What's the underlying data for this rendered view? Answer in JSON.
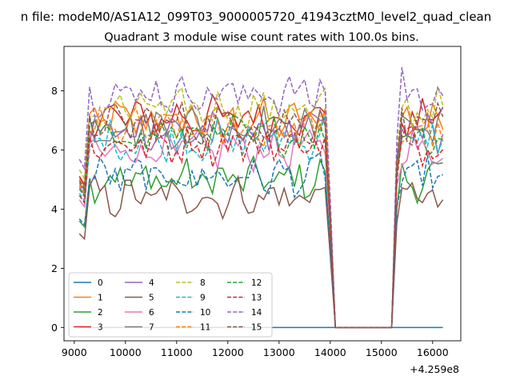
{
  "figure": {
    "suptitle": "n file: modeM0/AS1A12_099T03_9000005720_41943cztM0_level2_quad_clean",
    "title": "Quadrant 3 module wise count rates with 100.0s bins.",
    "x_offset_label": "+4.259e8"
  },
  "chart_data": {
    "type": "line",
    "title": "Quadrant 3 module wise count rates with 100.0s bins.",
    "xlabel": "",
    "ylabel": "",
    "x_offset": 425900000,
    "xlim": [
      8800,
      16550
    ],
    "ylim": [
      -0.45,
      9.5
    ],
    "xticks": [
      9000,
      10000,
      11000,
      12000,
      13000,
      14000,
      15000,
      16000
    ],
    "xtick_labels": [
      "9000",
      "10000",
      "11000",
      "12000",
      "13000",
      "14000",
      "15000",
      "16000"
    ],
    "yticks": [
      0,
      2,
      4,
      6,
      8
    ],
    "ytick_labels": [
      "0",
      "2",
      "4",
      "6",
      "8"
    ],
    "x_range_shown": [
      9100,
      16200
    ],
    "bin_width_s": 100,
    "gap_interval": [
      14100,
      15200
    ],
    "legend": {
      "position": "lower-left",
      "columns": 4
    },
    "series": [
      {
        "name": "0",
        "color": "#1f77b4",
        "dash": "solid",
        "level": 0.0
      },
      {
        "name": "1",
        "color": "#ff7f0e",
        "dash": "solid",
        "level": 7.0
      },
      {
        "name": "2",
        "color": "#2ca02c",
        "dash": "solid",
        "level": 5.0
      },
      {
        "name": "3",
        "color": "#d62728",
        "dash": "solid",
        "level": 7.1
      },
      {
        "name": "4",
        "color": "#9467bd",
        "dash": "solid",
        "level": 6.6
      },
      {
        "name": "5",
        "color": "#8c564b",
        "dash": "solid",
        "level": 4.4
      },
      {
        "name": "6",
        "color": "#e377c2",
        "dash": "solid",
        "level": 6.0
      },
      {
        "name": "7",
        "color": "#7f7f7f",
        "dash": "solid",
        "level": 6.8
      },
      {
        "name": "8",
        "color": "#bcbd22",
        "dash": "dashed",
        "level": 7.4
      },
      {
        "name": "9",
        "color": "#17becf",
        "dash": "dashed",
        "level": 6.3
      },
      {
        "name": "10",
        "color": "#1f77b4",
        "dash": "dashed",
        "level": 5.1
      },
      {
        "name": "11",
        "color": "#ff7f0e",
        "dash": "dashed",
        "level": 6.7
      },
      {
        "name": "12",
        "color": "#2ca02c",
        "dash": "dashed",
        "level": 6.5
      },
      {
        "name": "13",
        "color": "#d62728",
        "dash": "dashed",
        "level": 6.2
      },
      {
        "name": "14",
        "color": "#9467bd",
        "dash": "dashed",
        "level": 7.9
      },
      {
        "name": "15",
        "color": "#8c564b",
        "dash": "dashed",
        "level": 6.9
      }
    ]
  }
}
